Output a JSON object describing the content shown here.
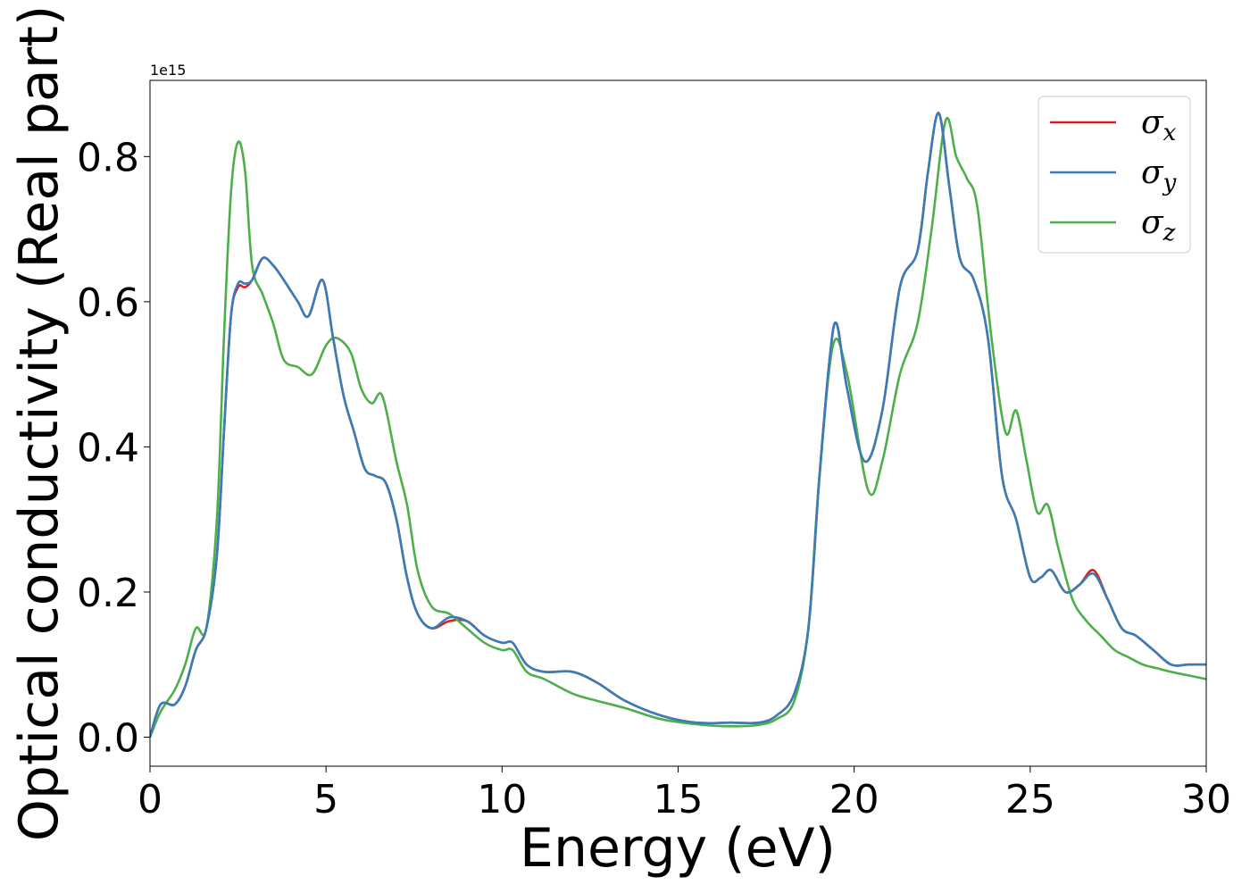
{
  "chart_data": {
    "type": "line",
    "xlabel": "Energy (eV)",
    "ylabel": "Optical conductivity (Real part)",
    "y_offset_label": "1e15",
    "xlim": [
      0,
      30
    ],
    "ylim": [
      -0.04,
      0.905
    ],
    "xticks": [
      0,
      5,
      10,
      15,
      20,
      25,
      30
    ],
    "xtick_labels": [
      "0",
      "5",
      "10",
      "15",
      "20",
      "25",
      "30"
    ],
    "yticks": [
      0.0,
      0.2,
      0.4,
      0.6,
      0.8
    ],
    "ytick_labels": [
      "0.0",
      "0.2",
      "0.4",
      "0.6",
      "0.8"
    ],
    "grid": false,
    "legend_position": "top-right",
    "series": [
      {
        "name": "σx",
        "symbol": "σ",
        "subscript": "x",
        "color": "#e41a1c",
        "x": [
          0,
          0.3,
          0.7,
          1.0,
          1.3,
          1.6,
          1.9,
          2.1,
          2.3,
          2.5,
          2.7,
          2.9,
          3.2,
          3.5,
          3.8,
          4.2,
          4.5,
          4.9,
          5.2,
          5.5,
          5.8,
          6.1,
          6.4,
          6.7,
          7.0,
          7.3,
          7.6,
          8.0,
          8.5,
          9.0,
          9.5,
          10.0,
          10.3,
          10.7,
          11.2,
          12.0,
          12.7,
          13.5,
          14.5,
          15.5,
          16.5,
          17.3,
          17.8,
          18.3,
          18.7,
          19.0,
          19.3,
          19.5,
          19.8,
          20.3,
          20.8,
          21.3,
          21.8,
          22.1,
          22.4,
          22.7,
          23.0,
          23.4,
          23.8,
          24.2,
          24.6,
          25.0,
          25.3,
          25.6,
          26.0,
          26.4,
          26.8,
          27.2,
          27.6,
          28.0,
          28.5,
          29.0,
          29.5,
          30.0
        ],
        "values": [
          0.0,
          0.045,
          0.045,
          0.07,
          0.12,
          0.15,
          0.25,
          0.42,
          0.58,
          0.62,
          0.62,
          0.63,
          0.66,
          0.65,
          0.63,
          0.6,
          0.58,
          0.63,
          0.55,
          0.47,
          0.42,
          0.37,
          0.36,
          0.35,
          0.3,
          0.22,
          0.17,
          0.15,
          0.16,
          0.16,
          0.14,
          0.13,
          0.13,
          0.1,
          0.09,
          0.09,
          0.075,
          0.05,
          0.03,
          0.02,
          0.02,
          0.02,
          0.03,
          0.06,
          0.15,
          0.35,
          0.52,
          0.57,
          0.48,
          0.38,
          0.45,
          0.62,
          0.67,
          0.78,
          0.86,
          0.76,
          0.66,
          0.63,
          0.55,
          0.36,
          0.3,
          0.22,
          0.22,
          0.23,
          0.2,
          0.21,
          0.23,
          0.19,
          0.15,
          0.14,
          0.12,
          0.1,
          0.1,
          0.1
        ]
      },
      {
        "name": "σy",
        "symbol": "σ",
        "subscript": "y",
        "color": "#377eb8",
        "x": [
          0,
          0.3,
          0.7,
          1.0,
          1.3,
          1.6,
          1.9,
          2.1,
          2.3,
          2.5,
          2.7,
          2.9,
          3.2,
          3.5,
          3.8,
          4.2,
          4.5,
          4.9,
          5.2,
          5.5,
          5.8,
          6.1,
          6.4,
          6.7,
          7.0,
          7.3,
          7.6,
          8.0,
          8.5,
          9.0,
          9.5,
          10.0,
          10.3,
          10.7,
          11.2,
          12.0,
          12.7,
          13.5,
          14.5,
          15.5,
          16.5,
          17.3,
          17.8,
          18.3,
          18.7,
          19.0,
          19.3,
          19.5,
          19.8,
          20.3,
          20.8,
          21.3,
          21.8,
          22.1,
          22.4,
          22.7,
          23.0,
          23.4,
          23.8,
          24.2,
          24.6,
          25.0,
          25.3,
          25.6,
          26.0,
          26.4,
          26.8,
          27.2,
          27.6,
          28.0,
          28.5,
          29.0,
          29.5,
          30.0
        ],
        "values": [
          0.0,
          0.045,
          0.045,
          0.07,
          0.12,
          0.15,
          0.25,
          0.42,
          0.58,
          0.625,
          0.625,
          0.63,
          0.66,
          0.65,
          0.63,
          0.6,
          0.58,
          0.63,
          0.55,
          0.47,
          0.42,
          0.37,
          0.36,
          0.35,
          0.3,
          0.22,
          0.17,
          0.15,
          0.165,
          0.16,
          0.14,
          0.13,
          0.13,
          0.1,
          0.09,
          0.09,
          0.075,
          0.05,
          0.03,
          0.02,
          0.02,
          0.02,
          0.03,
          0.06,
          0.15,
          0.35,
          0.52,
          0.57,
          0.48,
          0.38,
          0.45,
          0.62,
          0.67,
          0.78,
          0.86,
          0.76,
          0.66,
          0.63,
          0.55,
          0.36,
          0.3,
          0.22,
          0.22,
          0.23,
          0.2,
          0.21,
          0.225,
          0.19,
          0.15,
          0.14,
          0.12,
          0.1,
          0.1,
          0.1
        ]
      },
      {
        "name": "σz",
        "symbol": "σ",
        "subscript": "z",
        "color": "#4daf4a",
        "x": [
          0,
          0.3,
          0.7,
          1.0,
          1.3,
          1.6,
          1.9,
          2.1,
          2.3,
          2.5,
          2.7,
          2.9,
          3.2,
          3.5,
          3.8,
          4.2,
          4.6,
          5.0,
          5.3,
          5.7,
          6.0,
          6.3,
          6.6,
          7.0,
          7.3,
          7.6,
          8.0,
          8.5,
          9.0,
          9.5,
          10.0,
          10.3,
          10.7,
          11.2,
          12.0,
          12.7,
          13.5,
          14.5,
          15.5,
          16.5,
          17.3,
          17.8,
          18.3,
          18.7,
          19.0,
          19.4,
          19.8,
          20.4,
          20.8,
          21.3,
          21.8,
          22.2,
          22.6,
          22.9,
          23.2,
          23.5,
          23.9,
          24.3,
          24.6,
          24.9,
          25.2,
          25.5,
          25.8,
          26.2,
          26.6,
          27.0,
          27.4,
          27.8,
          28.2,
          28.6,
          29.0,
          29.5,
          30.0
        ],
        "values": [
          0.0,
          0.035,
          0.065,
          0.1,
          0.15,
          0.15,
          0.3,
          0.55,
          0.75,
          0.82,
          0.78,
          0.65,
          0.61,
          0.57,
          0.52,
          0.51,
          0.5,
          0.54,
          0.55,
          0.53,
          0.48,
          0.46,
          0.47,
          0.38,
          0.32,
          0.23,
          0.18,
          0.17,
          0.15,
          0.13,
          0.12,
          0.12,
          0.09,
          0.08,
          0.06,
          0.05,
          0.04,
          0.025,
          0.018,
          0.015,
          0.017,
          0.025,
          0.05,
          0.15,
          0.35,
          0.54,
          0.5,
          0.34,
          0.38,
          0.5,
          0.57,
          0.7,
          0.85,
          0.8,
          0.77,
          0.73,
          0.55,
          0.42,
          0.45,
          0.38,
          0.31,
          0.32,
          0.26,
          0.19,
          0.16,
          0.14,
          0.12,
          0.11,
          0.1,
          0.095,
          0.09,
          0.085,
          0.08
        ]
      }
    ]
  }
}
